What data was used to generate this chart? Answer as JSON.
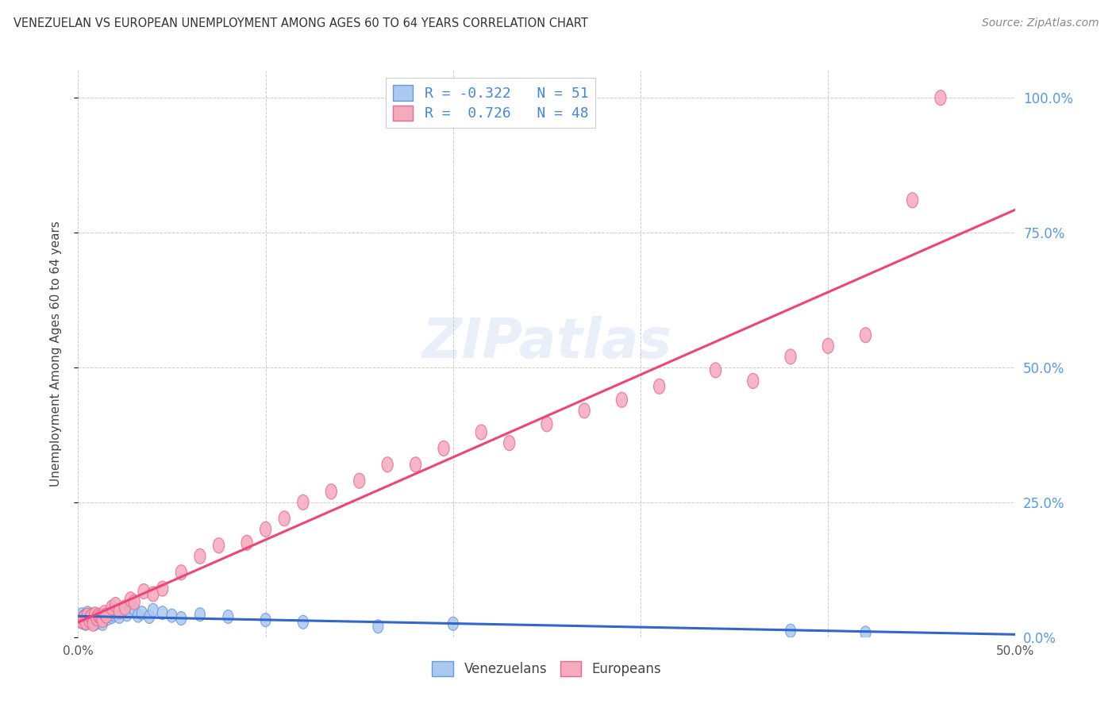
{
  "title": "VENEZUELAN VS EUROPEAN UNEMPLOYMENT AMONG AGES 60 TO 64 YEARS CORRELATION CHART",
  "source": "Source: ZipAtlas.com",
  "ylabel_left": "Unemployment Among Ages 60 to 64 years",
  "xlim": [
    0.0,
    0.5
  ],
  "ylim": [
    0.0,
    1.05
  ],
  "venezuelan_color": "#aac8f0",
  "european_color": "#f5aabe",
  "venezuelan_edge_color": "#6699dd",
  "european_edge_color": "#ee6688",
  "venezuelan_line_color": "#3366cc",
  "european_line_color": "#ee4477",
  "watermark": "ZIPatlas",
  "legend_R_ven": "-0.322",
  "legend_N_ven": "51",
  "legend_R_eur": "0.726",
  "legend_N_eur": "48",
  "venezuelan_x": [
    0.001,
    0.002,
    0.002,
    0.003,
    0.003,
    0.004,
    0.004,
    0.005,
    0.005,
    0.006,
    0.006,
    0.007,
    0.007,
    0.008,
    0.008,
    0.009,
    0.009,
    0.01,
    0.01,
    0.011,
    0.011,
    0.012,
    0.012,
    0.013,
    0.014,
    0.015,
    0.016,
    0.017,
    0.018,
    0.019,
    0.02,
    0.022,
    0.024,
    0.026,
    0.028,
    0.03,
    0.032,
    0.034,
    0.038,
    0.04,
    0.045,
    0.05,
    0.055,
    0.065,
    0.08,
    0.1,
    0.12,
    0.16,
    0.2,
    0.38,
    0.42
  ],
  "venezuelan_y": [
    0.035,
    0.028,
    0.042,
    0.03,
    0.038,
    0.025,
    0.04,
    0.032,
    0.045,
    0.028,
    0.038,
    0.035,
    0.04,
    0.03,
    0.042,
    0.025,
    0.038,
    0.032,
    0.04,
    0.028,
    0.035,
    0.03,
    0.04,
    0.025,
    0.038,
    0.042,
    0.035,
    0.048,
    0.038,
    0.042,
    0.045,
    0.038,
    0.05,
    0.042,
    0.048,
    0.052,
    0.04,
    0.045,
    0.038,
    0.05,
    0.045,
    0.04,
    0.035,
    0.042,
    0.038,
    0.032,
    0.028,
    0.02,
    0.025,
    0.012,
    0.008
  ],
  "european_x": [
    0.002,
    0.003,
    0.004,
    0.005,
    0.006,
    0.007,
    0.008,
    0.009,
    0.01,
    0.011,
    0.012,
    0.013,
    0.014,
    0.015,
    0.018,
    0.02,
    0.022,
    0.025,
    0.028,
    0.03,
    0.035,
    0.04,
    0.045,
    0.055,
    0.065,
    0.075,
    0.09,
    0.1,
    0.11,
    0.12,
    0.135,
    0.15,
    0.165,
    0.18,
    0.195,
    0.215,
    0.23,
    0.25,
    0.27,
    0.29,
    0.31,
    0.34,
    0.36,
    0.38,
    0.4,
    0.42,
    0.445,
    0.46
  ],
  "european_y": [
    0.03,
    0.035,
    0.028,
    0.04,
    0.032,
    0.038,
    0.025,
    0.042,
    0.035,
    0.04,
    0.038,
    0.032,
    0.045,
    0.04,
    0.055,
    0.06,
    0.048,
    0.055,
    0.07,
    0.065,
    0.085,
    0.08,
    0.09,
    0.12,
    0.15,
    0.17,
    0.175,
    0.2,
    0.22,
    0.25,
    0.27,
    0.29,
    0.32,
    0.32,
    0.35,
    0.38,
    0.36,
    0.395,
    0.42,
    0.44,
    0.465,
    0.495,
    0.475,
    0.52,
    0.54,
    0.56,
    0.81,
    1.0
  ],
  "background_color": "#ffffff",
  "grid_color": "#cccccc"
}
